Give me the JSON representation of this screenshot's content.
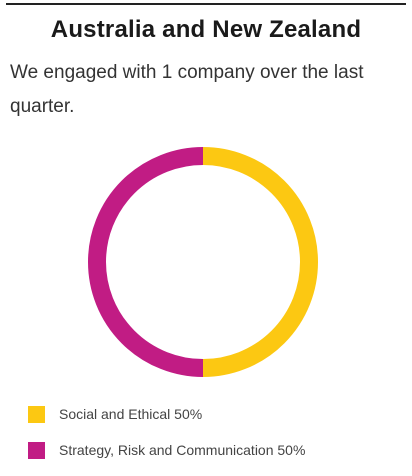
{
  "header": {
    "title": "Australia and New Zealand",
    "summary": "We engaged with 1 company over the last quarter."
  },
  "chart_data": {
    "type": "pie",
    "donut": true,
    "legend_position": "bottom-left",
    "slices": [
      {
        "label": "Social and Ethical 50%",
        "category": "Social and Ethical",
        "value": 50,
        "color": "#FCC812"
      },
      {
        "label": "Strategy, Risk and Communication 50%",
        "category": "Strategy, Risk and Communication",
        "value": 50,
        "color": "#C11C84"
      }
    ]
  }
}
